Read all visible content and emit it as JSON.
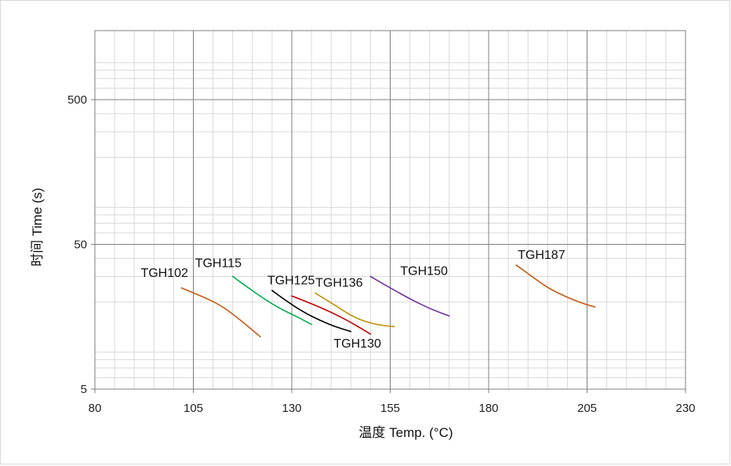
{
  "chart_data": {
    "type": "line",
    "title": "",
    "xlabel": "温度 Temp. (°C)",
    "ylabel": "时间 Time (s)",
    "xlim": [
      80,
      230
    ],
    "ylim": [
      5,
      1500
    ],
    "yscale": "log",
    "x_ticks": [
      "80",
      "105",
      "130",
      "155",
      "180",
      "205",
      "230"
    ],
    "y_ticks": [
      "5",
      "50",
      "500"
    ],
    "grid": true,
    "legend": "none",
    "series": [
      {
        "name": "TGH102",
        "color": "#c55a11",
        "x": [
          102,
          107,
          112,
          117,
          122
        ],
        "y": [
          25,
          22,
          19,
          15,
          11.5
        ]
      },
      {
        "name": "TGH115",
        "color": "#00b050",
        "x": [
          115,
          119,
          123,
          127,
          131,
          135
        ],
        "y": [
          30,
          25,
          21,
          18,
          16,
          14
        ]
      },
      {
        "name": "TGH125",
        "color": "#000000",
        "x": [
          125,
          129,
          133,
          137,
          141,
          145
        ],
        "y": [
          24,
          20,
          17,
          15,
          13.5,
          12.5
        ]
      },
      {
        "name": "TGH130",
        "color": "#c00000",
        "x": [
          130,
          135,
          140,
          145,
          150
        ],
        "y": [
          22,
          19.5,
          17,
          14.5,
          12
        ]
      },
      {
        "name": "TGH136",
        "color": "#bf9000",
        "x": [
          136,
          141,
          146,
          151,
          156
        ],
        "y": [
          23,
          19,
          15.5,
          14,
          13.5
        ]
      },
      {
        "name": "TGH150",
        "color": "#7030a0",
        "x": [
          150,
          155,
          160,
          165,
          170
        ],
        "y": [
          30,
          25,
          21,
          18,
          16
        ]
      },
      {
        "name": "TGH187",
        "color": "#c55a11",
        "x": [
          187,
          191,
          195,
          200,
          204,
          207
        ],
        "y": [
          36,
          30,
          25,
          21.5,
          19.5,
          18.5
        ]
      }
    ]
  }
}
